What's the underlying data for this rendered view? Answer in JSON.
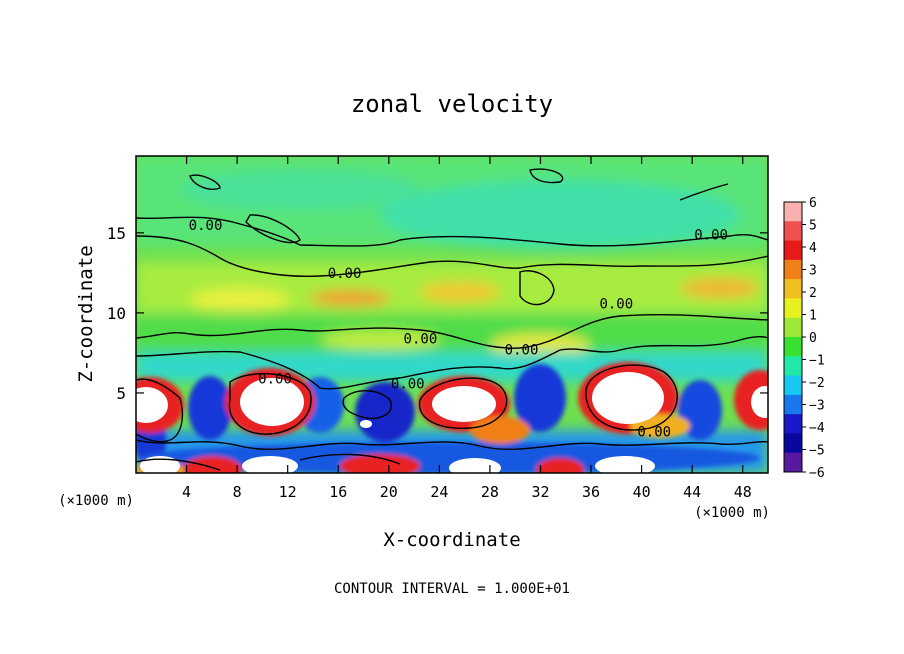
{
  "chart_data": {
    "type": "heatmap",
    "title": "zonal velocity",
    "xlabel": "X-coordinate",
    "ylabel": "Z-coordinate",
    "x_unit": "(×1000 m)",
    "z_unit": "(×1000 m)",
    "x_ticks": [
      "4",
      "8",
      "12",
      "16",
      "20",
      "24",
      "28",
      "32",
      "36",
      "40",
      "44",
      "48"
    ],
    "x_tick_values": [
      4,
      8,
      12,
      16,
      20,
      24,
      28,
      32,
      36,
      40,
      44,
      48
    ],
    "y_ticks": [
      "5",
      "10",
      "15"
    ],
    "y_tick_values": [
      5,
      10,
      15
    ],
    "xlim": [
      0,
      50
    ],
    "ylim": [
      0,
      19.8
    ],
    "colorbar": {
      "labels": [
        "6",
        "5",
        "4",
        "3",
        "2",
        "1",
        "0",
        "−1",
        "−2",
        "−3",
        "−4",
        "−5",
        "−6"
      ],
      "values": [
        6,
        5,
        4,
        3,
        2,
        1,
        0,
        -1,
        -2,
        -3,
        -4,
        -5,
        -6
      ],
      "colors": [
        "#f8b0b0",
        "#f05050",
        "#e81a1a",
        "#f08018",
        "#f0c020",
        "#e8f020",
        "#a0e838",
        "#38e030",
        "#20e8a8",
        "#18c8f0",
        "#1878f0",
        "#1818c8",
        "#0808a0",
        "#5818a0"
      ]
    },
    "contour_labels": [
      {
        "text": "0.00",
        "x": 5.5,
        "z": 15.5
      },
      {
        "text": "0.00",
        "x": 16.5,
        "z": 12.5
      },
      {
        "text": "0.00",
        "x": 45.5,
        "z": 14.9
      },
      {
        "text": "0.00",
        "x": 38.0,
        "z": 10.6
      },
      {
        "text": "0.00",
        "x": 22.5,
        "z": 8.4
      },
      {
        "text": "0.00",
        "x": 30.5,
        "z": 7.7
      },
      {
        "text": "0.00",
        "x": 11.0,
        "z": 5.9
      },
      {
        "text": "0.00",
        "x": 21.5,
        "z": 5.6
      },
      {
        "text": "0.00",
        "x": 41.0,
        "z": 2.6
      }
    ],
    "footnote": "CONTOUR INTERVAL = 1.000E+01"
  }
}
